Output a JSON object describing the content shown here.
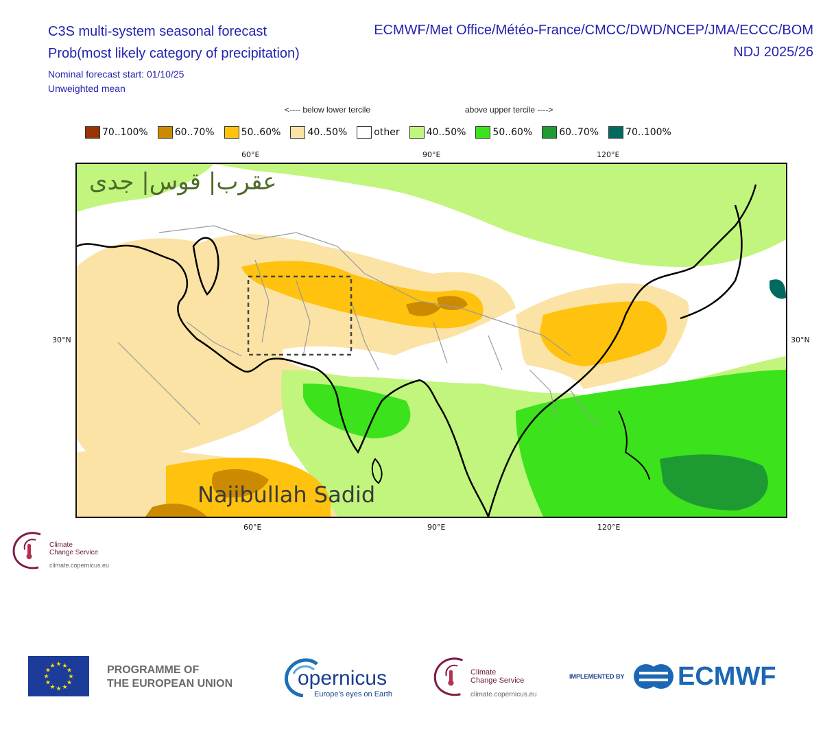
{
  "header": {
    "title_line1": "C3S multi-system seasonal forecast",
    "title_line2": "Prob(most likely category of precipitation)",
    "systems": "ECMWF/Met Office/Météo-France/CMCC/DWD/NCEP/JMA/ECCC/BOM",
    "period": "NDJ 2025/26",
    "forecast_start": "Nominal forecast start: 01/10/25",
    "mean_type": "Unweighted mean"
  },
  "legend": {
    "below_label": "<---- below lower tercile",
    "above_label": "above upper tercile ---->",
    "items": [
      {
        "label": "70..100%",
        "color": "#993404"
      },
      {
        "label": "60..70%",
        "color": "#cc8a00"
      },
      {
        "label": "50..60%",
        "color": "#ffc20e"
      },
      {
        "label": "40..50%",
        "color": "#fbe3a6"
      },
      {
        "label": "other",
        "color": "#ffffff"
      },
      {
        "label": "40..50%",
        "color": "#c1f57d"
      },
      {
        "label": "50..60%",
        "color": "#3ce21c"
      },
      {
        "label": "60..70%",
        "color": "#1e9a33"
      },
      {
        "label": "70..100%",
        "color": "#006a5e"
      }
    ]
  },
  "map": {
    "lon_top": [
      "60°E",
      "90°E",
      "120°E"
    ],
    "lon_bottom": [
      "60°E",
      "90°E",
      "120°E"
    ],
    "lat_left": "30°N",
    "lat_right": "30°N",
    "overlay_text": "عقرب| قوس| جدی",
    "watermark": "Najibullah Sadid"
  },
  "logos": {
    "ccs_line1": "Climate",
    "ccs_line2": "Change Service",
    "ccs_url": "climate.copernicus.eu",
    "eu_text_line1": "PROGRAMME OF",
    "eu_text_line2": "THE EUROPEAN UNION",
    "copernicus_name": "opernicus",
    "copernicus_c": "C",
    "copernicus_tagline": "Europe's eyes on Earth",
    "implemented_by": "IMPLEMENTED BY",
    "ecmwf": "ECMWF"
  }
}
